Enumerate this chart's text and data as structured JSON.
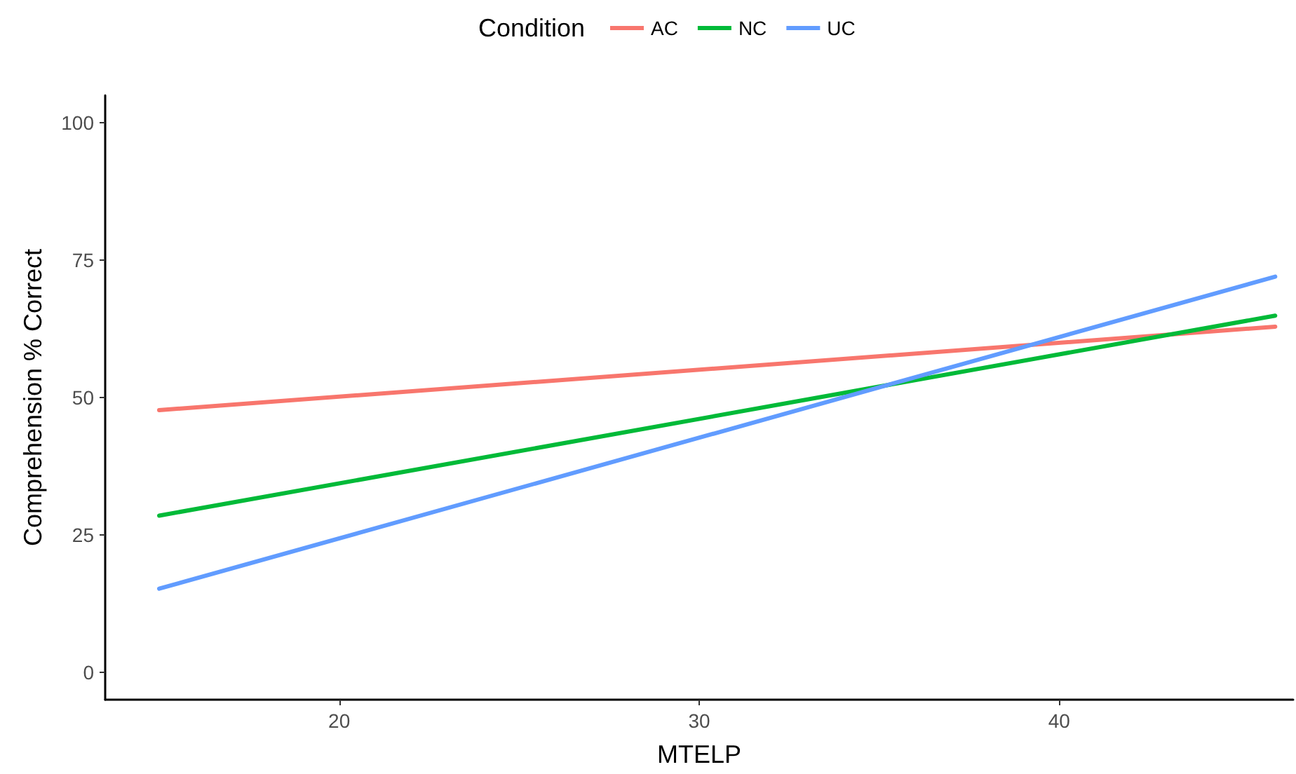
{
  "chart_data": {
    "type": "line",
    "xlabel": "MTELP",
    "ylabel": "Comprehension % Correct",
    "legend_title": "Condition",
    "x": [
      15,
      46
    ],
    "series": [
      {
        "name": "AC",
        "color": "#f8766d",
        "values": [
          47.7,
          62.9
        ]
      },
      {
        "name": "NC",
        "color": "#00ba38",
        "values": [
          28.5,
          64.9
        ]
      },
      {
        "name": "UC",
        "color": "#619cff",
        "values": [
          15.2,
          72.0
        ]
      }
    ],
    "xlim": [
      13.5,
      46.5
    ],
    "xticks": [
      20,
      30,
      40
    ],
    "ylim": [
      -5,
      105
    ],
    "yticks": [
      0,
      25,
      50,
      75,
      100
    ],
    "grid": false,
    "legend": "top",
    "marker": "none",
    "line_style": "solid"
  }
}
